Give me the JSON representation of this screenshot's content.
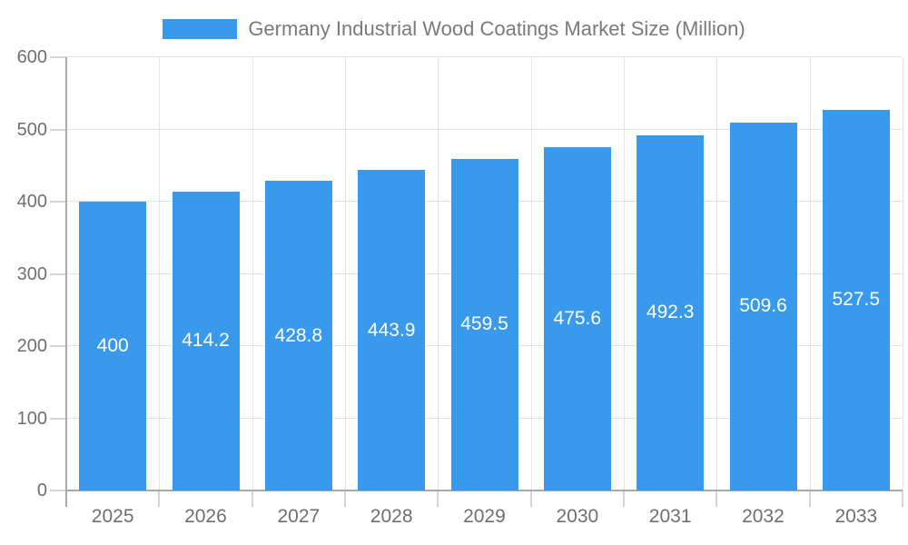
{
  "legend": {
    "label": "Germany Industrial Wood Coatings Market Size (Million)"
  },
  "colors": {
    "background": "#ffffff",
    "bar": "#3899ed",
    "grid": "#e3e3e3",
    "axis_line": "#a8a8a8",
    "tick": "#d4d4d4",
    "axis_text": "#6f6f6f",
    "title_text": "#7a7a7a",
    "value_text": "#ffffff"
  },
  "chart_data": {
    "type": "bar",
    "title": "Germany Industrial Wood Coatings Market Size (Million)",
    "categories": [
      "2025",
      "2026",
      "2027",
      "2028",
      "2029",
      "2030",
      "2031",
      "2032",
      "2033"
    ],
    "values": [
      400,
      414.2,
      428.8,
      443.9,
      459.5,
      475.6,
      492.3,
      509.6,
      527.5
    ],
    "value_labels": [
      "400",
      "414.2",
      "428.8",
      "443.9",
      "459.5",
      "475.6",
      "492.3",
      "509.6",
      "527.5"
    ],
    "xlabel": "",
    "ylabel": "",
    "ylim": [
      0,
      600
    ],
    "ytick_step": 100,
    "ytick_labels": [
      "0",
      "100",
      "200",
      "300",
      "400",
      "500",
      "600"
    ],
    "grid": true,
    "legend_position": "top",
    "value_label_position": "inside-center"
  }
}
